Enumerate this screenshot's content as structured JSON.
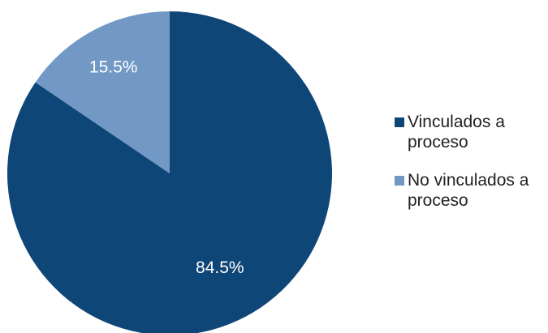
{
  "chart_data": {
    "type": "pie",
    "title": "",
    "categories": [
      "Vinculados a proceso",
      "No vinculados a proceso"
    ],
    "values": [
      84.5,
      15.5
    ],
    "unit": "%",
    "data_labels": [
      "84.5%",
      "15.5%"
    ],
    "colors": [
      "#0f4678",
      "#7299c5"
    ],
    "start_angle": "12 o'clock, clockwise",
    "legend": {
      "position": "right",
      "items": [
        "Vinculados a proceso",
        "No vinculados a proceso"
      ]
    }
  }
}
